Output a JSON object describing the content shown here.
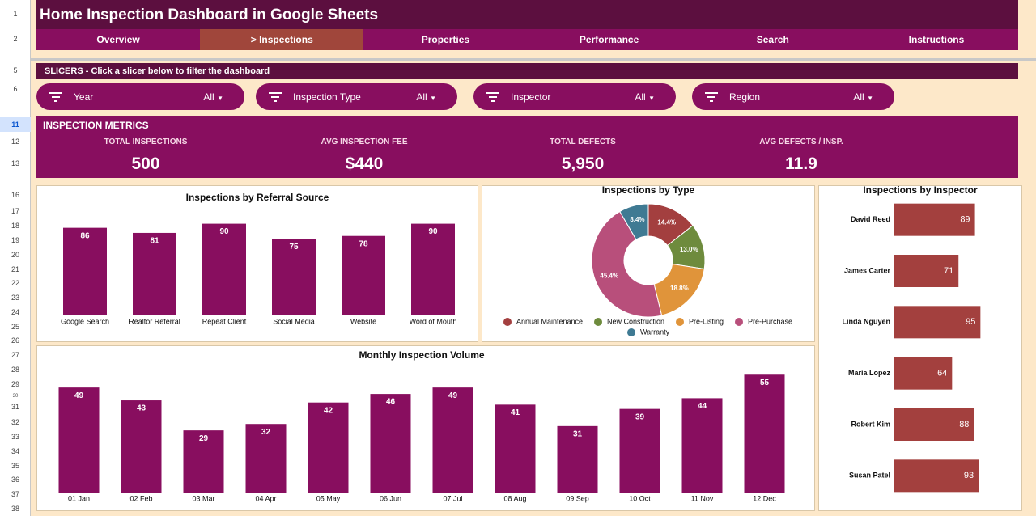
{
  "header": {
    "title": "Home Inspection Dashboard in Google Sheets"
  },
  "nav": {
    "tabs": [
      "Overview",
      "> Inspections",
      "Properties",
      "Performance",
      "Search",
      "Instructions"
    ],
    "active": 1
  },
  "row_numbers": [
    "1",
    "2",
    "5",
    "6",
    "11",
    "12",
    "13",
    "16",
    "17",
    "18",
    "19",
    "20",
    "21",
    "22",
    "23",
    "24",
    "25",
    "26",
    "27",
    "28",
    "29",
    "30",
    "31",
    "32",
    "33",
    "34",
    "35",
    "36",
    "37",
    "38"
  ],
  "slicers": {
    "heading": "SLICERS  -  Click a slicer below to filter the dashboard",
    "items": [
      {
        "name": "Year",
        "value": "All"
      },
      {
        "name": "Inspection Type",
        "value": "All"
      },
      {
        "name": "Inspector",
        "value": "All"
      },
      {
        "name": "Region",
        "value": "All"
      }
    ]
  },
  "metrics": {
    "title": "INSPECTION METRICS",
    "items": [
      {
        "label": "TOTAL INSPECTIONS",
        "value": "500"
      },
      {
        "label": "AVG INSPECTION FEE",
        "value": "$440"
      },
      {
        "label": "TOTAL DEFECTS",
        "value": "5,950"
      },
      {
        "label": "AVG DEFECTS / INSP.",
        "value": "11.9"
      }
    ]
  },
  "chart_data": [
    {
      "type": "bar",
      "title": "Inspections by Referral Source",
      "categories": [
        "Google Search",
        "Realtor Referral",
        "Repeat Client",
        "Social Media",
        "Website",
        "Word of Mouth"
      ],
      "values": [
        86,
        81,
        90,
        75,
        78,
        90
      ],
      "color": "#880e5f",
      "ylim": [
        0,
        100
      ]
    },
    {
      "type": "doughnut",
      "title": "Inspections by Type",
      "categories": [
        "Annual Maintenance",
        "New Construction",
        "Pre-Listing",
        "Pre-Purchase",
        "Warranty"
      ],
      "values": [
        14.4,
        13.0,
        18.8,
        45.4,
        8.4
      ],
      "value_labels": [
        "14.4%",
        "13.0%",
        "18.8%",
        "45.4%",
        "8.4%"
      ],
      "colors": [
        "#a33f3f",
        "#6e8b3d",
        "#e0943a",
        "#b84f7b",
        "#3f7a93"
      ]
    },
    {
      "type": "hbar",
      "title": "Inspections by Inspector",
      "categories": [
        "David Reed",
        "James Carter",
        "Linda Nguyen",
        "Maria Lopez",
        "Robert Kim",
        "Susan Patel"
      ],
      "values": [
        89,
        71,
        95,
        64,
        88,
        93
      ],
      "color": "#a3403e",
      "xlim": [
        0,
        100
      ]
    },
    {
      "type": "bar",
      "title": "Monthly Inspection Volume",
      "categories": [
        "01 Jan",
        "02 Feb",
        "03 Mar",
        "04 Apr",
        "05 May",
        "06 Jun",
        "07 Jul",
        "08 Aug",
        "09 Sep",
        "10 Oct",
        "11 Nov",
        "12 Dec"
      ],
      "values": [
        49,
        43,
        29,
        32,
        42,
        46,
        49,
        41,
        31,
        39,
        44,
        55
      ],
      "color": "#880e5f",
      "ylim": [
        0,
        60
      ]
    }
  ]
}
